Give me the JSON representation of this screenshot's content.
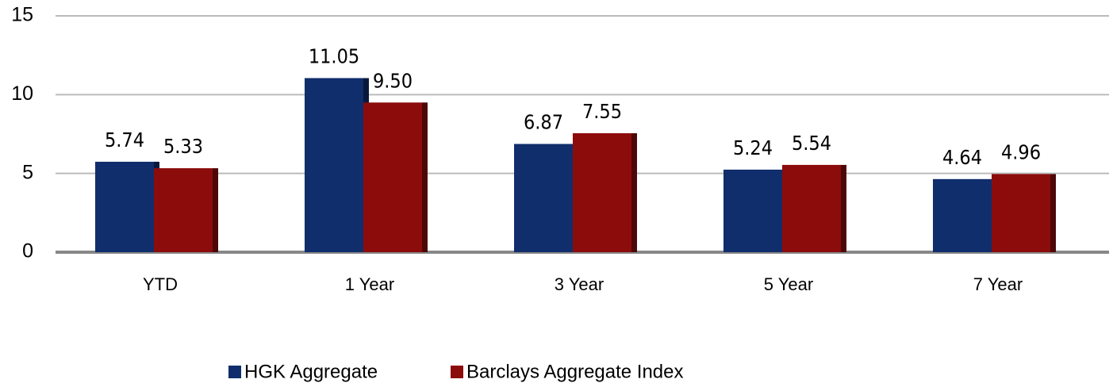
{
  "chart_data": {
    "type": "bar",
    "categories": [
      "YTD",
      "1 Year",
      "3 Year",
      "5 Year",
      "7 Year"
    ],
    "series": [
      {
        "name": "HGK Aggregate",
        "color": "#102e6c",
        "values": [
          5.74,
          11.05,
          6.87,
          5.24,
          4.64
        ],
        "value_labels": [
          "5.74",
          "11.05",
          "6.87",
          "5.24",
          "4.64"
        ]
      },
      {
        "name": "Barclays Aggregate Index",
        "color": "#8c0c0c",
        "values": [
          5.33,
          9.5,
          7.55,
          5.54,
          4.96
        ],
        "value_labels": [
          "5.33",
          "9.50",
          "7.55",
          "5.54",
          "4.96"
        ]
      }
    ],
    "ylim": [
      0,
      15
    ],
    "yticks": [
      0,
      5,
      10,
      15
    ],
    "grid": true
  }
}
